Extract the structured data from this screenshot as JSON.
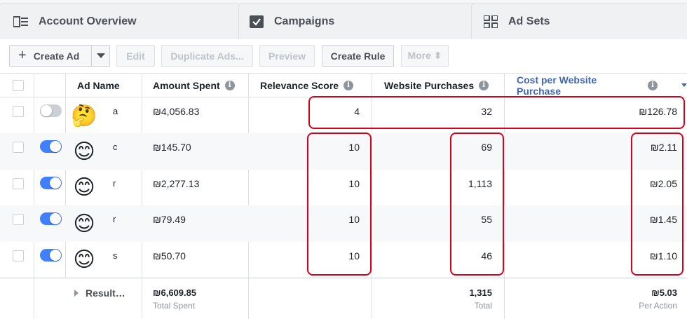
{
  "tabs": [
    {
      "label": "Account Overview",
      "icon": "account-overview-icon"
    },
    {
      "label": "Campaigns",
      "icon": "campaigns-checkbox-icon"
    },
    {
      "label": "Ad Sets",
      "icon": "ad-sets-grid-icon"
    }
  ],
  "toolbar": {
    "create_ad": "Create Ad",
    "edit": "Edit",
    "duplicate": "Duplicate Ads...",
    "preview": "Preview",
    "create_rule": "Create Rule",
    "more": "More ⬍"
  },
  "columns": {
    "ad_name": "Ad Name",
    "amount_spent": "Amount Spent",
    "relevance": "Relevance Score",
    "purchases": "Website Purchases",
    "cost": "Cost per Website Purchase"
  },
  "rows": [
    {
      "toggle": "off",
      "emoji": "🤔",
      "name": "a",
      "spent": "₪4,056.83",
      "relevance": "4",
      "purchases": "32",
      "cost": "₪126.78"
    },
    {
      "toggle": "on",
      "emoji": "😊",
      "name": "c",
      "spent": "₪145.70",
      "relevance": "10",
      "purchases": "69",
      "cost": "₪2.11"
    },
    {
      "toggle": "on",
      "emoji": "😊",
      "name": "r",
      "spent": "₪2,277.13",
      "relevance": "10",
      "purchases": "1,113",
      "cost": "₪2.05"
    },
    {
      "toggle": "on",
      "emoji": "😊",
      "name": "r",
      "spent": "₪79.49",
      "relevance": "10",
      "purchases": "55",
      "cost": "₪1.45"
    },
    {
      "toggle": "on",
      "emoji": "😊",
      "name": "s",
      "spent": "₪50.70",
      "relevance": "10",
      "purchases": "46",
      "cost": "₪1.10"
    }
  ],
  "summary": {
    "label": "Result…",
    "spent": "₪6,609.85",
    "spent_sub": "Total Spent",
    "purchases": "1,315",
    "purchases_sub": "Total",
    "cost": "₪5.03",
    "cost_sub": "Per Action"
  },
  "colors": {
    "accent": "#4080ff",
    "highlight": "#d9001b",
    "sorted_header": "#4267b2"
  }
}
